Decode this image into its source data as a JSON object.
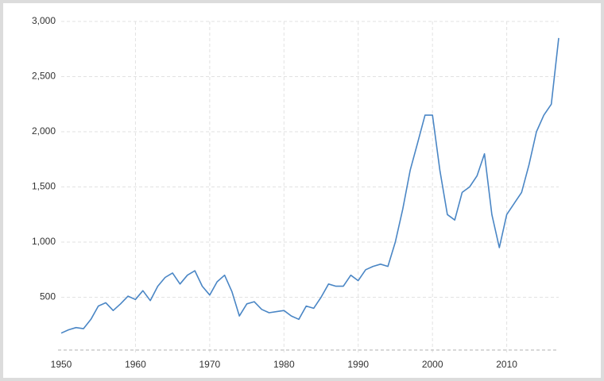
{
  "chart_data": {
    "type": "line",
    "x": [
      1950,
      1951,
      1952,
      1953,
      1954,
      1955,
      1956,
      1957,
      1958,
      1959,
      1960,
      1961,
      1962,
      1963,
      1964,
      1965,
      1966,
      1967,
      1968,
      1969,
      1970,
      1971,
      1972,
      1973,
      1974,
      1975,
      1976,
      1977,
      1978,
      1979,
      1980,
      1981,
      1982,
      1983,
      1984,
      1985,
      1986,
      1987,
      1988,
      1989,
      1990,
      1991,
      1992,
      1993,
      1994,
      1995,
      1996,
      1997,
      1998,
      1999,
      2000,
      2001,
      2002,
      2003,
      2004,
      2005,
      2006,
      2007,
      2008,
      2009,
      2010,
      2011,
      2012,
      2013,
      2014,
      2015,
      2016,
      2017
    ],
    "series": [
      {
        "color": "#4a86c5",
        "values": [
          175,
          205,
          225,
          215,
          300,
          420,
          450,
          380,
          440,
          510,
          480,
          560,
          470,
          600,
          680,
          720,
          620,
          700,
          740,
          600,
          520,
          640,
          700,
          550,
          330,
          440,
          460,
          390,
          360,
          370,
          380,
          330,
          300,
          420,
          400,
          500,
          620,
          600,
          600,
          700,
          650,
          750,
          780,
          800,
          780,
          1000,
          1300,
          1650,
          1900,
          2150,
          2150,
          1650,
          1250,
          1200,
          1450,
          1500,
          1600,
          1800,
          1250,
          950,
          1250,
          1350,
          1450,
          1700,
          2000,
          2150,
          2250,
          2850
        ]
      }
    ],
    "xlim": [
      1950,
      2017
    ],
    "xticks": [
      1950,
      1960,
      1970,
      1980,
      1990,
      2000,
      2010
    ],
    "ylim": [
      0,
      3000
    ],
    "yticks": [
      500,
      {
        "value": 1000,
        "label": "1,000"
      },
      {
        "value": 1500,
        "label": "1,500"
      },
      {
        "value": 2000,
        "label": "2,000"
      },
      {
        "value": 2500,
        "label": "2,500"
      },
      {
        "value": 3000,
        "label": "3,000"
      }
    ],
    "grid": true
  }
}
